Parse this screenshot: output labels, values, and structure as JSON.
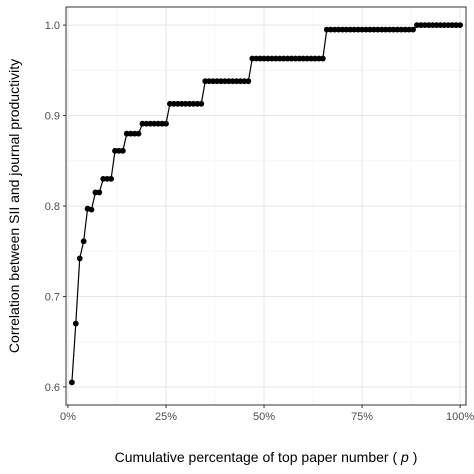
{
  "chart_data": {
    "type": "line",
    "xlabel": "Cumulative percentage of top paper number ( p )",
    "xlabel_parts": {
      "before": "Cumulative percentage of top paper number ( ",
      "var": "p",
      "after": " )"
    },
    "ylabel": "Correlation between SII and journal productivity",
    "xlim": [
      0,
      1
    ],
    "ylim": [
      0.6,
      1.0
    ],
    "x_ticks": [
      {
        "value": 0.0,
        "label": "0%"
      },
      {
        "value": 0.25,
        "label": "25%"
      },
      {
        "value": 0.5,
        "label": "50%"
      },
      {
        "value": 0.75,
        "label": "75%"
      },
      {
        "value": 1.0,
        "label": "100%"
      }
    ],
    "y_ticks": [
      {
        "value": 0.6,
        "label": "0.6"
      },
      {
        "value": 0.7,
        "label": "0.7"
      },
      {
        "value": 0.8,
        "label": "0.8"
      },
      {
        "value": 0.9,
        "label": "0.9"
      },
      {
        "value": 1.0,
        "label": "1.0"
      }
    ],
    "grid": true,
    "legend": "none",
    "line_color": "#000000",
    "point_color": "#000000",
    "series": [
      {
        "x": [
          0.01,
          0.02,
          0.03,
          0.04,
          0.05,
          0.06,
          0.07,
          0.08,
          0.09,
          0.1,
          0.11,
          0.12,
          0.13,
          0.14,
          0.15,
          0.16,
          0.17,
          0.18,
          0.19,
          0.2,
          0.21,
          0.22,
          0.23,
          0.24,
          0.25,
          0.26,
          0.27,
          0.28,
          0.29,
          0.3,
          0.31,
          0.32,
          0.33,
          0.34,
          0.35,
          0.36,
          0.37,
          0.38,
          0.39,
          0.4,
          0.41,
          0.42,
          0.43,
          0.44,
          0.45,
          0.46,
          0.47,
          0.48,
          0.49,
          0.5,
          0.51,
          0.52,
          0.53,
          0.54,
          0.55,
          0.56,
          0.57,
          0.58,
          0.59,
          0.6,
          0.61,
          0.62,
          0.63,
          0.64,
          0.65,
          0.66,
          0.67,
          0.68,
          0.69,
          0.7,
          0.71,
          0.72,
          0.73,
          0.74,
          0.75,
          0.76,
          0.77,
          0.78,
          0.79,
          0.8,
          0.81,
          0.82,
          0.83,
          0.84,
          0.85,
          0.86,
          0.87,
          0.88,
          0.89,
          0.9,
          0.91,
          0.92,
          0.93,
          0.94,
          0.95,
          0.96,
          0.97,
          0.98,
          0.99,
          1.0
        ],
        "y": [
          0.605,
          0.67,
          0.742,
          0.761,
          0.797,
          0.796,
          0.815,
          0.815,
          0.83,
          0.83,
          0.83,
          0.861,
          0.861,
          0.861,
          0.88,
          0.88,
          0.88,
          0.88,
          0.891,
          0.891,
          0.891,
          0.891,
          0.891,
          0.891,
          0.891,
          0.913,
          0.913,
          0.913,
          0.913,
          0.913,
          0.913,
          0.913,
          0.913,
          0.913,
          0.938,
          0.938,
          0.938,
          0.938,
          0.938,
          0.938,
          0.938,
          0.938,
          0.938,
          0.938,
          0.938,
          0.938,
          0.963,
          0.963,
          0.963,
          0.963,
          0.963,
          0.963,
          0.963,
          0.963,
          0.963,
          0.963,
          0.963,
          0.963,
          0.963,
          0.963,
          0.963,
          0.963,
          0.963,
          0.963,
          0.963,
          0.995,
          0.995,
          0.995,
          0.995,
          0.995,
          0.995,
          0.995,
          0.995,
          0.995,
          0.995,
          0.995,
          0.995,
          0.995,
          0.995,
          0.995,
          0.995,
          0.995,
          0.995,
          0.995,
          0.995,
          0.995,
          0.995,
          0.995,
          1.0,
          1.0,
          1.0,
          1.0,
          1.0,
          1.0,
          1.0,
          1.0,
          1.0,
          1.0,
          1.0,
          1.0
        ]
      }
    ]
  }
}
